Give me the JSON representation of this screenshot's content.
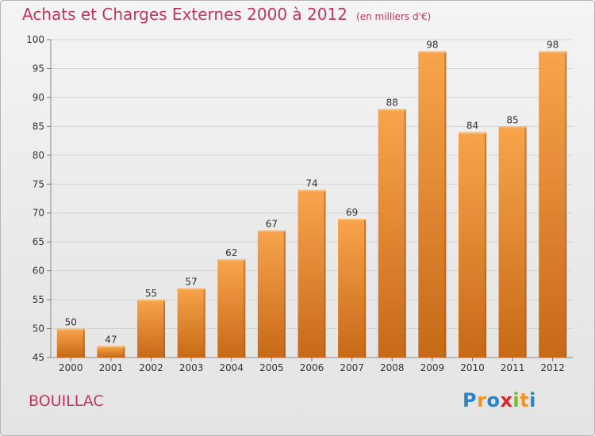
{
  "title": "Achats et Charges Externes 2000 à 2012",
  "subtitle": "(en milliers d'€)",
  "commune": "BOUILLAC",
  "logo": {
    "letters": [
      {
        "char": "P",
        "color": "#2a84c6"
      },
      {
        "char": "r",
        "color": "#f29222"
      },
      {
        "char": "o",
        "color": "#2a84c6"
      },
      {
        "char": "x",
        "color": "#d8232a"
      },
      {
        "char": "i",
        "color": "#7ab834"
      },
      {
        "char": "t",
        "color": "#f29222"
      },
      {
        "char": "i",
        "color": "#2a84c6"
      }
    ]
  },
  "colors": {
    "title": "#c0365b",
    "bar_top": "#f8a44d",
    "bar_bottom": "#c76917",
    "bar_side": "#a85512"
  },
  "chart_data": {
    "type": "bar",
    "categories": [
      "2000",
      "2001",
      "2002",
      "2003",
      "2004",
      "2005",
      "2006",
      "2007",
      "2008",
      "2009",
      "2010",
      "2011",
      "2012"
    ],
    "values": [
      50,
      47,
      55,
      57,
      62,
      67,
      74,
      69,
      88,
      98,
      84,
      85,
      98
    ],
    "ylim": [
      45,
      100
    ],
    "yticks": [
      45,
      50,
      55,
      60,
      65,
      70,
      75,
      80,
      85,
      90,
      95,
      100
    ],
    "grid": true,
    "data_labels": true
  }
}
